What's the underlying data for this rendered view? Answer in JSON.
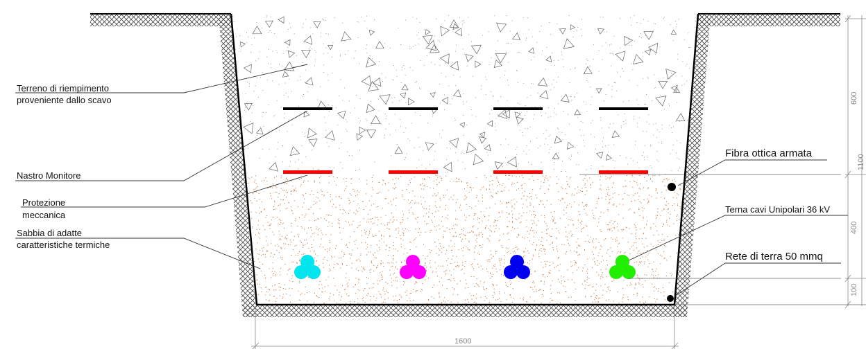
{
  "labels": {
    "terreno_line1": "Terreno di riempimento",
    "terreno_line2": "proveniente dallo scavo",
    "nastro": "Nastro Monitore",
    "protezione_line1": "Protezione",
    "protezione_line2": "meccanica",
    "sabbia_line1": "Sabbia di adatte",
    "sabbia_line2": "caratteristiche termiche",
    "fibra": "Fibra ottica armata",
    "terna": "Terna cavi Unipolari 36 kV",
    "rete": "Rete di terra 50 mmq"
  },
  "dimensions": {
    "width": "1600",
    "h_total": "1100",
    "h_fill": "600",
    "h_sand": "400",
    "h_bottom": "100"
  },
  "colors": {
    "cable_1": "#00e5ee",
    "cable_2": "#ff00ff",
    "cable_3": "#0000ee",
    "cable_4": "#22ee00",
    "protection": "#ff0000",
    "monitor_tape": "#000000",
    "sand_speckle": "#c8743a"
  }
}
